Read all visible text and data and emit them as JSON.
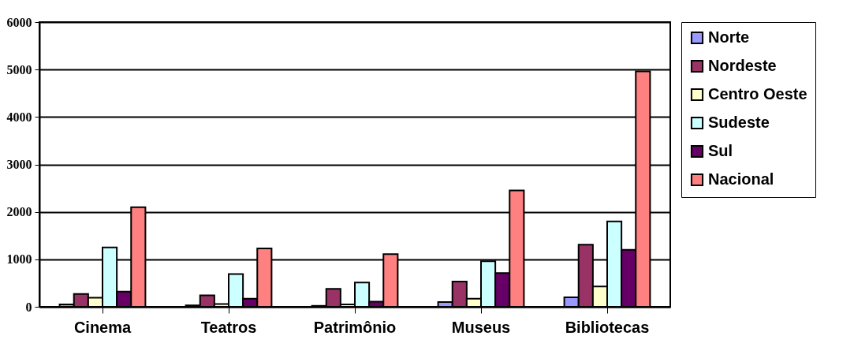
{
  "chart_data": {
    "type": "bar",
    "categories": [
      "Cinema",
      "Teatros",
      "Patrimônio",
      "Museus",
      "Bibliotecas"
    ],
    "series": [
      {
        "name": "Norte",
        "color": "#9999ff",
        "values": [
          50,
          30,
          20,
          100,
          200
        ]
      },
      {
        "name": "Nordeste",
        "color": "#993366",
        "values": [
          270,
          240,
          380,
          530,
          1310
        ]
      },
      {
        "name": "Centro Oeste",
        "color": "#ffffcc",
        "values": [
          190,
          60,
          50,
          170,
          430
        ]
      },
      {
        "name": "Sudeste",
        "color": "#ccffff",
        "values": [
          1250,
          690,
          510,
          960,
          1800
        ]
      },
      {
        "name": "Sul",
        "color": "#660066",
        "values": [
          320,
          170,
          110,
          710,
          1200
        ]
      },
      {
        "name": "Nacional",
        "color": "#ff8080",
        "values": [
          2100,
          1230,
          1110,
          2450,
          4960
        ]
      }
    ],
    "ylim": [
      0,
      6000
    ],
    "yticks": [
      0,
      1000,
      2000,
      3000,
      4000,
      5000,
      6000
    ],
    "grid": "y",
    "legend": "right"
  }
}
